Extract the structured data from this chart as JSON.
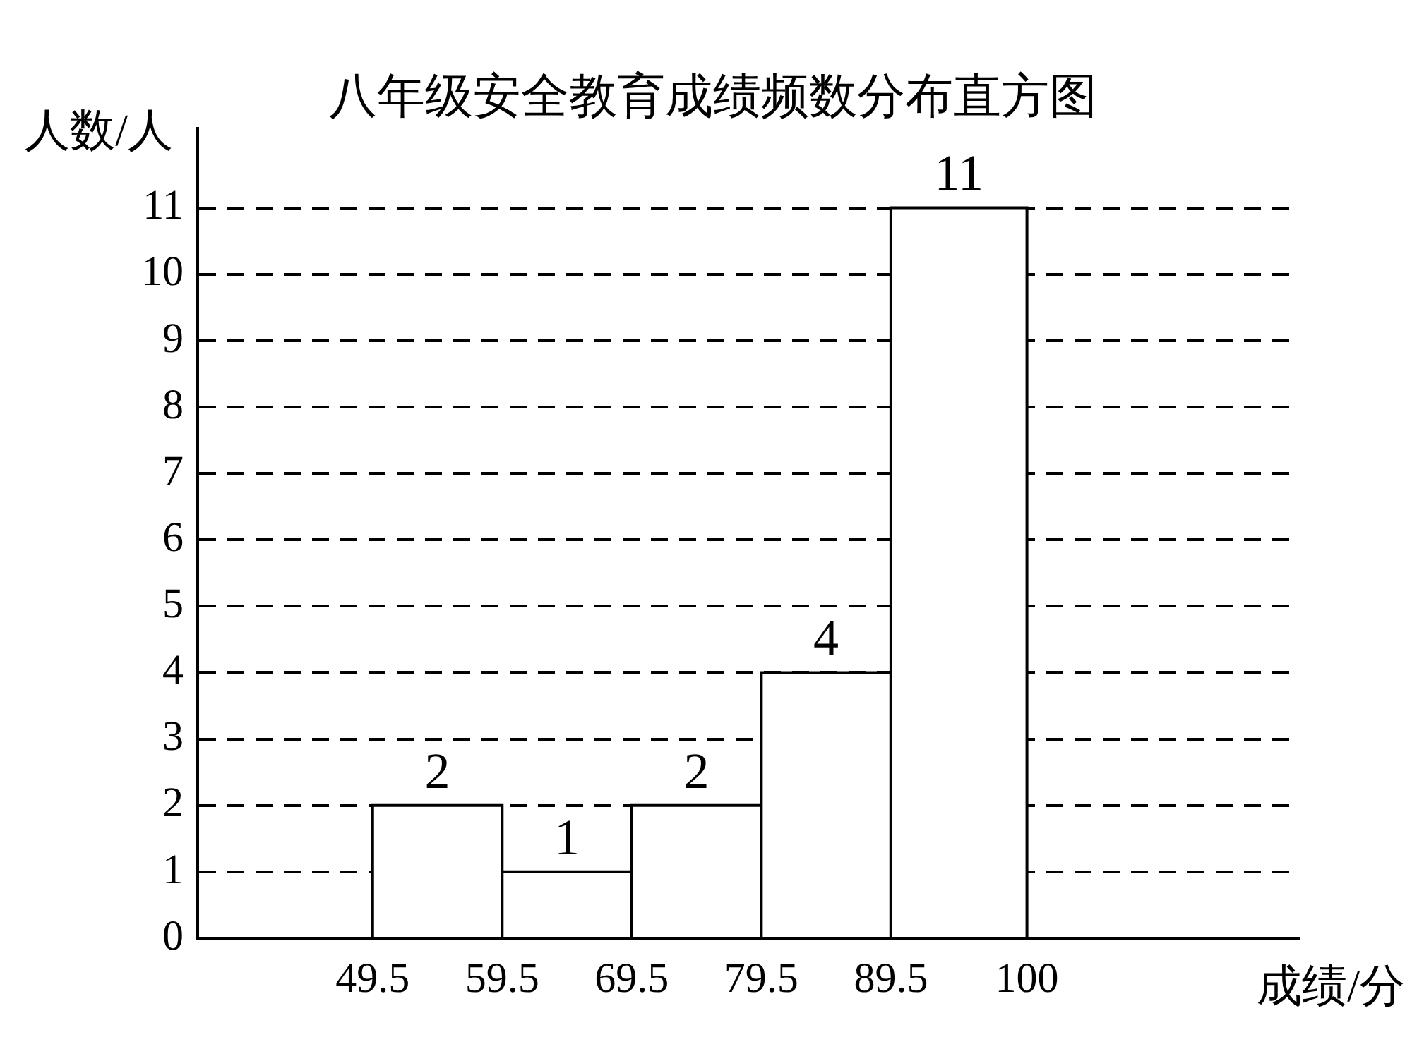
{
  "chart_data": {
    "type": "histogram",
    "title": "八年级安全教育成绩频数分布直方图",
    "xlabel": "成绩/分",
    "ylabel": "人数/人",
    "bins": [
      49.5,
      59.5,
      69.5,
      79.5,
      89.5,
      100
    ],
    "values": [
      2,
      1,
      2,
      4,
      11
    ],
    "color": "#ffffff",
    "xlim": [
      36,
      121
    ],
    "xticks": [
      49.5,
      59.5,
      69.5,
      79.5,
      89.5,
      100
    ],
    "ylim": [
      0,
      12.2
    ],
    "yticks": [
      0,
      1,
      2,
      3,
      4,
      5,
      6,
      7,
      8,
      9,
      10,
      11
    ],
    "grid": "y",
    "line_style": "dashed",
    "data_labels": true,
    "legend": false
  }
}
